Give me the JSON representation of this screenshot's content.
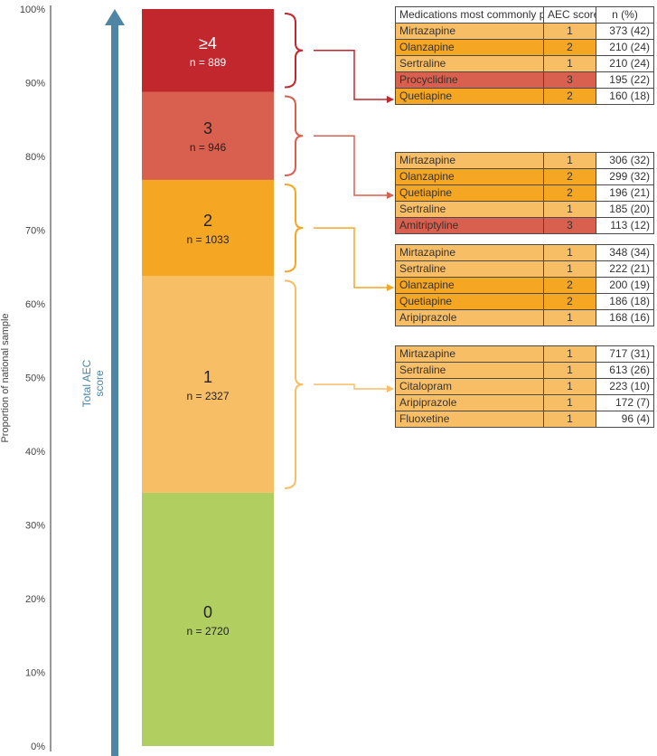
{
  "chart_data": {
    "type": "bar",
    "stacked": true,
    "ylabel": "Proportion of national sample",
    "ylim": [
      0,
      100
    ],
    "y_ticks": [
      "0%",
      "10%",
      "20%",
      "30%",
      "40%",
      "50%",
      "60%",
      "70%",
      "80%",
      "90%",
      "100%"
    ],
    "arrow_label": "Total AEC score",
    "segments": [
      {
        "label": "0",
        "n_text": "n = 2720",
        "n": 2720,
        "color": "#b1cf60"
      },
      {
        "label": "1",
        "n_text": "n = 2327",
        "n": 2327,
        "color": "#f8be66"
      },
      {
        "label": "2",
        "n_text": "n = 1033",
        "n": 1033,
        "color": "#f5a623"
      },
      {
        "label": "3",
        "n_text": "n =  946",
        "n": 946,
        "color": "#d9604e"
      },
      {
        "label": "≥4",
        "n_text": "n = 889",
        "n": 889,
        "color": "#c1272d"
      }
    ],
    "table_header": {
      "medication": "Medications most commonly prescribed that contributed to anticholinergic burden",
      "aec": "AEC score",
      "n_pct": "n (%)"
    },
    "tables": [
      {
        "aec_group": "≥4",
        "rows": [
          {
            "drug": "Mirtazapine",
            "aec": "1",
            "n_pct": "373 (42)"
          },
          {
            "drug": "Olanzapine",
            "aec": "2",
            "n_pct": "210 (24)"
          },
          {
            "drug": "Sertraline",
            "aec": "1",
            "n_pct": "210 (24)"
          },
          {
            "drug": "Procyclidine",
            "aec": "3",
            "n_pct": "195 (22)"
          },
          {
            "drug": "Quetiapine",
            "aec": "2",
            "n_pct": "160 (18)"
          }
        ]
      },
      {
        "aec_group": "3",
        "rows": [
          {
            "drug": "Mirtazapine",
            "aec": "1",
            "n_pct": "306 (32)"
          },
          {
            "drug": "Olanzapine",
            "aec": "2",
            "n_pct": "299 (32)"
          },
          {
            "drug": "Quetiapine",
            "aec": "2",
            "n_pct": "196 (21)"
          },
          {
            "drug": "Sertraline",
            "aec": "1",
            "n_pct": "185 (20)"
          },
          {
            "drug": "Amitriptyline",
            "aec": "3",
            "n_pct": "113 (12)"
          }
        ]
      },
      {
        "aec_group": "2",
        "rows": [
          {
            "drug": "Mirtazapine",
            "aec": "1",
            "n_pct": "348 (34)"
          },
          {
            "drug": "Sertraline",
            "aec": "1",
            "n_pct": "222 (21)"
          },
          {
            "drug": "Olanzapine",
            "aec": "2",
            "n_pct": "200 (19)"
          },
          {
            "drug": "Quetiapine",
            "aec": "2",
            "n_pct": "186 (18)"
          },
          {
            "drug": "Aripiprazole",
            "aec": "1",
            "n_pct": "168 (16)"
          }
        ]
      },
      {
        "aec_group": "1",
        "rows": [
          {
            "drug": "Mirtazapine",
            "aec": "1",
            "n_pct": "717 (31)"
          },
          {
            "drug": "Sertraline",
            "aec": "1",
            "n_pct": "613 (26)"
          },
          {
            "drug": "Citalopram",
            "aec": "1",
            "n_pct": "223 (10)"
          },
          {
            "drug": "Aripiprazole",
            "aec": "1",
            "n_pct": "172 (7)"
          },
          {
            "drug": "Fluoxetine",
            "aec": "1",
            "n_pct": "96 (4)"
          }
        ]
      }
    ],
    "colors": {
      "axis": "#555555",
      "arrow": "#4f86a6",
      "score_1": "#f8be66",
      "score_2": "#f5a623",
      "score_3": "#d9604e"
    }
  }
}
